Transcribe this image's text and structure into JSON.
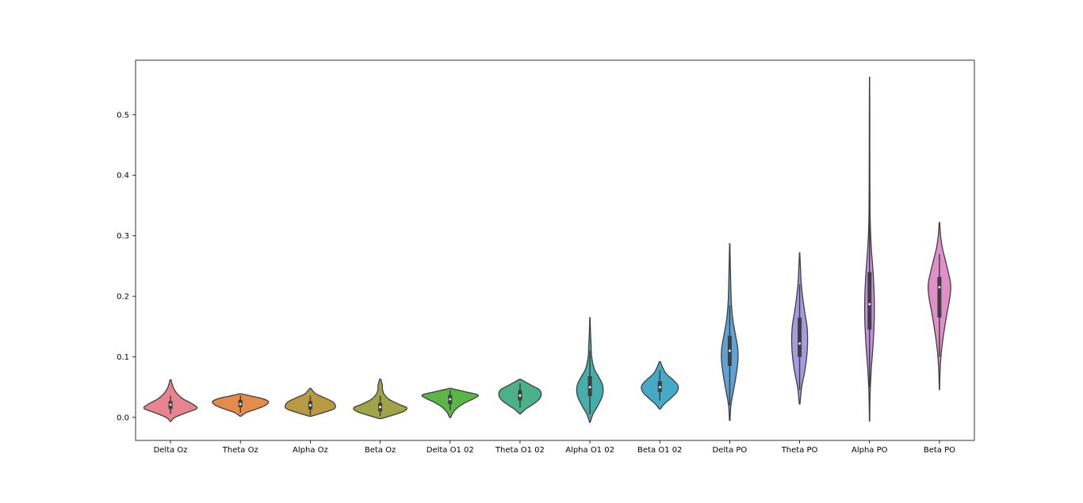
{
  "chart_data": {
    "type": "violin",
    "title": "",
    "xlabel": "",
    "ylabel": "",
    "ylim": [
      -0.038,
      0.59
    ],
    "yticks": [
      0.0,
      0.1,
      0.2,
      0.3,
      0.4,
      0.5
    ],
    "ytick_labels": [
      "0.0",
      "0.1",
      "0.2",
      "0.3",
      "0.4",
      "0.5"
    ],
    "grid": false,
    "categories": [
      "Delta Oz",
      "Theta Oz",
      "Alpha Oz",
      "Beta Oz",
      "Delta O1 02",
      "Theta O1 02",
      "Alpha O1 02",
      "Beta O1 02",
      "Delta PO",
      "Theta PO",
      "Alpha PO",
      "Beta PO"
    ],
    "violins": [
      {
        "category": "Delta Oz",
        "color": "#e8848f",
        "min": -0.007,
        "max": 0.062,
        "q1": 0.014,
        "median": 0.021,
        "q3": 0.027,
        "whisker_low": 0.006,
        "whisker_high": 0.036,
        "density": [
          [
            -0.007,
            0.002
          ],
          [
            0.0,
            0.15
          ],
          [
            0.008,
            0.55
          ],
          [
            0.015,
            0.9
          ],
          [
            0.022,
            0.75
          ],
          [
            0.03,
            0.45
          ],
          [
            0.038,
            0.25
          ],
          [
            0.046,
            0.13
          ],
          [
            0.054,
            0.06
          ],
          [
            0.062,
            0.02
          ]
        ]
      },
      {
        "category": "Theta Oz",
        "color": "#e58c4d",
        "min": 0.002,
        "max": 0.039,
        "q1": 0.017,
        "median": 0.022,
        "q3": 0.029,
        "whisker_low": 0.008,
        "whisker_high": 0.036,
        "density": [
          [
            0.002,
            0.02
          ],
          [
            0.008,
            0.2
          ],
          [
            0.014,
            0.55
          ],
          [
            0.02,
            0.85
          ],
          [
            0.026,
            0.95
          ],
          [
            0.031,
            0.75
          ],
          [
            0.036,
            0.3
          ],
          [
            0.039,
            0.02
          ]
        ]
      },
      {
        "category": "Alpha Oz",
        "color": "#b89a45",
        "min": 0.002,
        "max": 0.048,
        "q1": 0.013,
        "median": 0.02,
        "q3": 0.027,
        "whisker_low": 0.004,
        "whisker_high": 0.036,
        "density": [
          [
            0.002,
            0.04
          ],
          [
            0.008,
            0.45
          ],
          [
            0.014,
            0.8
          ],
          [
            0.02,
            0.85
          ],
          [
            0.026,
            0.75
          ],
          [
            0.032,
            0.5
          ],
          [
            0.038,
            0.22
          ],
          [
            0.043,
            0.1
          ],
          [
            0.048,
            0.02
          ]
        ]
      },
      {
        "category": "Beta Oz",
        "color": "#9ea447",
        "min": -0.002,
        "max": 0.063,
        "q1": 0.01,
        "median": 0.017,
        "q3": 0.024,
        "whisker_low": 0.002,
        "whisker_high": 0.036,
        "density": [
          [
            -0.002,
            0.03
          ],
          [
            0.004,
            0.45
          ],
          [
            0.01,
            0.8
          ],
          [
            0.016,
            0.9
          ],
          [
            0.022,
            0.62
          ],
          [
            0.03,
            0.3
          ],
          [
            0.038,
            0.14
          ],
          [
            0.046,
            0.08
          ],
          [
            0.054,
            0.07
          ],
          [
            0.063,
            0.02
          ]
        ]
      },
      {
        "category": "Delta O1 02",
        "color": "#5cb547",
        "min": 0.0,
        "max": 0.048,
        "q1": 0.022,
        "median": 0.03,
        "q3": 0.037,
        "whisker_low": 0.012,
        "whisker_high": 0.045,
        "density": [
          [
            0.0,
            0.02
          ],
          [
            0.008,
            0.1
          ],
          [
            0.016,
            0.25
          ],
          [
            0.024,
            0.5
          ],
          [
            0.031,
            0.8
          ],
          [
            0.037,
            0.95
          ],
          [
            0.042,
            0.55
          ],
          [
            0.048,
            0.02
          ]
        ]
      },
      {
        "category": "Theta O1 02",
        "color": "#4cb08b",
        "min": 0.006,
        "max": 0.063,
        "q1": 0.028,
        "median": 0.036,
        "q3": 0.045,
        "whisker_low": 0.016,
        "whisker_high": 0.056,
        "density": [
          [
            0.006,
            0.02
          ],
          [
            0.014,
            0.2
          ],
          [
            0.022,
            0.45
          ],
          [
            0.03,
            0.65
          ],
          [
            0.038,
            0.72
          ],
          [
            0.046,
            0.65
          ],
          [
            0.054,
            0.35
          ],
          [
            0.063,
            0.02
          ]
        ]
      },
      {
        "category": "Alpha O1 02",
        "color": "#45aeaa",
        "min": -0.008,
        "max": 0.165,
        "q1": 0.035,
        "median": 0.05,
        "q3": 0.068,
        "whisker_low": 0.005,
        "whisker_high": 0.11,
        "density": [
          [
            -0.008,
            0.01
          ],
          [
            0.005,
            0.1
          ],
          [
            0.015,
            0.22
          ],
          [
            0.025,
            0.33
          ],
          [
            0.035,
            0.42
          ],
          [
            0.045,
            0.45
          ],
          [
            0.055,
            0.42
          ],
          [
            0.065,
            0.32
          ],
          [
            0.08,
            0.15
          ],
          [
            0.1,
            0.06
          ],
          [
            0.12,
            0.04
          ],
          [
            0.14,
            0.02
          ],
          [
            0.165,
            0.005
          ]
        ]
      },
      {
        "category": "Beta O1 02",
        "color": "#47a9c8",
        "min": 0.014,
        "max": 0.092,
        "q1": 0.042,
        "median": 0.05,
        "q3": 0.06,
        "whisker_low": 0.028,
        "whisker_high": 0.078,
        "density": [
          [
            0.014,
            0.02
          ],
          [
            0.022,
            0.15
          ],
          [
            0.032,
            0.38
          ],
          [
            0.042,
            0.58
          ],
          [
            0.052,
            0.62
          ],
          [
            0.062,
            0.45
          ],
          [
            0.072,
            0.22
          ],
          [
            0.082,
            0.1
          ],
          [
            0.092,
            0.02
          ]
        ]
      },
      {
        "category": "Delta PO",
        "color": "#5da4d6",
        "min": -0.005,
        "max": 0.287,
        "q1": 0.085,
        "median": 0.11,
        "q3": 0.135,
        "whisker_low": 0.02,
        "whisker_high": 0.185,
        "density": [
          [
            -0.005,
            0.01
          ],
          [
            0.02,
            0.04
          ],
          [
            0.045,
            0.13
          ],
          [
            0.07,
            0.22
          ],
          [
            0.095,
            0.28
          ],
          [
            0.115,
            0.27
          ],
          [
            0.135,
            0.2
          ],
          [
            0.16,
            0.11
          ],
          [
            0.185,
            0.06
          ],
          [
            0.21,
            0.04
          ],
          [
            0.24,
            0.025
          ],
          [
            0.287,
            0.005
          ]
        ]
      },
      {
        "category": "Theta PO",
        "color": "#a79be0",
        "min": 0.022,
        "max": 0.272,
        "q1": 0.1,
        "median": 0.122,
        "q3": 0.165,
        "whisker_low": 0.045,
        "whisker_high": 0.22,
        "density": [
          [
            0.022,
            0.01
          ],
          [
            0.05,
            0.07
          ],
          [
            0.075,
            0.17
          ],
          [
            0.1,
            0.24
          ],
          [
            0.125,
            0.27
          ],
          [
            0.15,
            0.25
          ],
          [
            0.175,
            0.17
          ],
          [
            0.2,
            0.1
          ],
          [
            0.225,
            0.05
          ],
          [
            0.25,
            0.025
          ],
          [
            0.272,
            0.005
          ]
        ]
      },
      {
        "category": "Alpha PO",
        "color": "#c68fe0",
        "min": -0.006,
        "max": 0.562,
        "q1": 0.145,
        "median": 0.187,
        "q3": 0.24,
        "whisker_low": 0.05,
        "whisker_high": 0.35,
        "density": [
          [
            -0.006,
            0.005
          ],
          [
            0.04,
            0.02
          ],
          [
            0.08,
            0.06
          ],
          [
            0.12,
            0.12
          ],
          [
            0.16,
            0.16
          ],
          [
            0.2,
            0.16
          ],
          [
            0.24,
            0.12
          ],
          [
            0.28,
            0.06
          ],
          [
            0.32,
            0.025
          ],
          [
            0.36,
            0.015
          ],
          [
            0.42,
            0.01
          ],
          [
            0.5,
            0.008
          ],
          [
            0.562,
            0.003
          ]
        ]
      },
      {
        "category": "Beta PO",
        "color": "#e08fc8",
        "min": 0.046,
        "max": 0.322,
        "q1": 0.165,
        "median": 0.215,
        "q3": 0.232,
        "whisker_low": 0.1,
        "whisker_high": 0.27,
        "density": [
          [
            0.046,
            0.005
          ],
          [
            0.08,
            0.025
          ],
          [
            0.11,
            0.07
          ],
          [
            0.14,
            0.15
          ],
          [
            0.17,
            0.25
          ],
          [
            0.2,
            0.36
          ],
          [
            0.22,
            0.38
          ],
          [
            0.24,
            0.3
          ],
          [
            0.26,
            0.2
          ],
          [
            0.28,
            0.1
          ],
          [
            0.3,
            0.04
          ],
          [
            0.322,
            0.008
          ]
        ]
      }
    ]
  }
}
